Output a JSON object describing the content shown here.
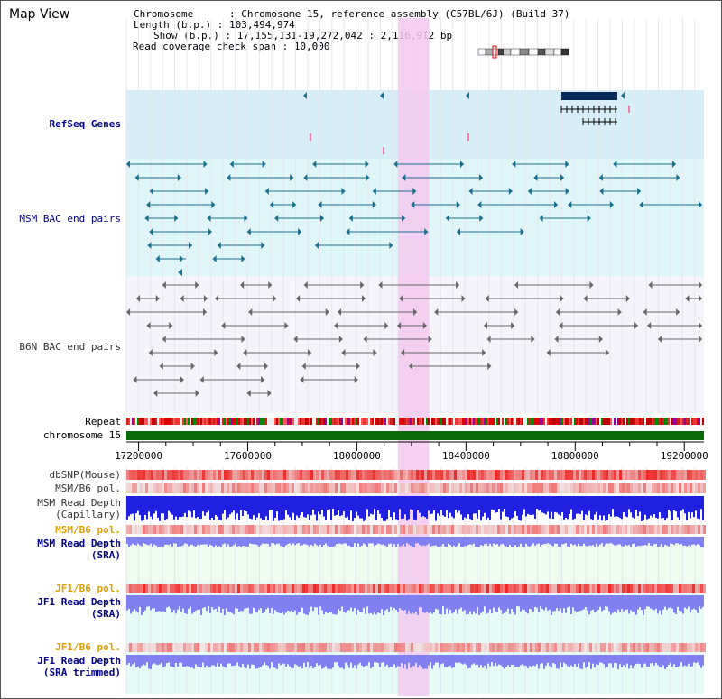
{
  "panel_title": "Map View",
  "info": {
    "chromosome": "Chromosome      : Chromosome 15, reference assembly (C57BL/6J) (Build 37)",
    "length": "Length (b.p.) : 103,494,974",
    "show": "Show (b.p.) : 17,155,131-19,272,042 : 2,116,912 bp",
    "coverage": "Read coverage check span : 10,000"
  },
  "tracks": {
    "refseq": "RefSeq Genes",
    "msm_bac": "MSM BAC end pairs",
    "b6n_bac": "B6N BAC end pairs",
    "repeat": "Repeat",
    "chromosome": "chromosome 15",
    "dbsnp": "dbSNP(Mouse)",
    "msm_b6_pol_1": "MSM/B6 pol.",
    "msm_depth_cap_1": "MSM Read Depth",
    "msm_depth_cap_2": "(Capillary)",
    "msm_b6_pol_2": "MSM/B6 pol.",
    "msm_depth_sra_1": "MSM Read Depth",
    "msm_depth_sra_2": "(SRA)",
    "jf1_pol_1": "JF1/B6 pol.",
    "jf1_depth_1": "JF1 Read Depth",
    "jf1_depth_1b": "(SRA)",
    "jf1_pol_2": "JF1/B6 pol.",
    "jf1_depth_2": "JF1 Read Depth",
    "jf1_depth_2b": "(SRA trimmed)"
  },
  "axis": {
    "ticks": [
      "17200000",
      "17600000",
      "18000000",
      "18400000",
      "18800000",
      "19200000"
    ],
    "tick_values": [
      17200000,
      17600000,
      18000000,
      18400000,
      18800000,
      19200000
    ],
    "range": [
      17155131,
      19272042
    ]
  },
  "highlight": {
    "start": 18150000,
    "end": 18265000,
    "color": "#f5c8f0"
  },
  "colors": {
    "refseq_bg": "#d6eef8",
    "bac_msm_bg": "#dff6f8",
    "bac_b6n_bg": "#f4f4fa",
    "msm_line": "#1a6f8f",
    "b6n_line": "#666666",
    "gene": "#0a2a5a",
    "chrom_bar": "#0a6a0a",
    "depth_blue": "#2020e0",
    "depth_light": "#8080f0"
  }
}
